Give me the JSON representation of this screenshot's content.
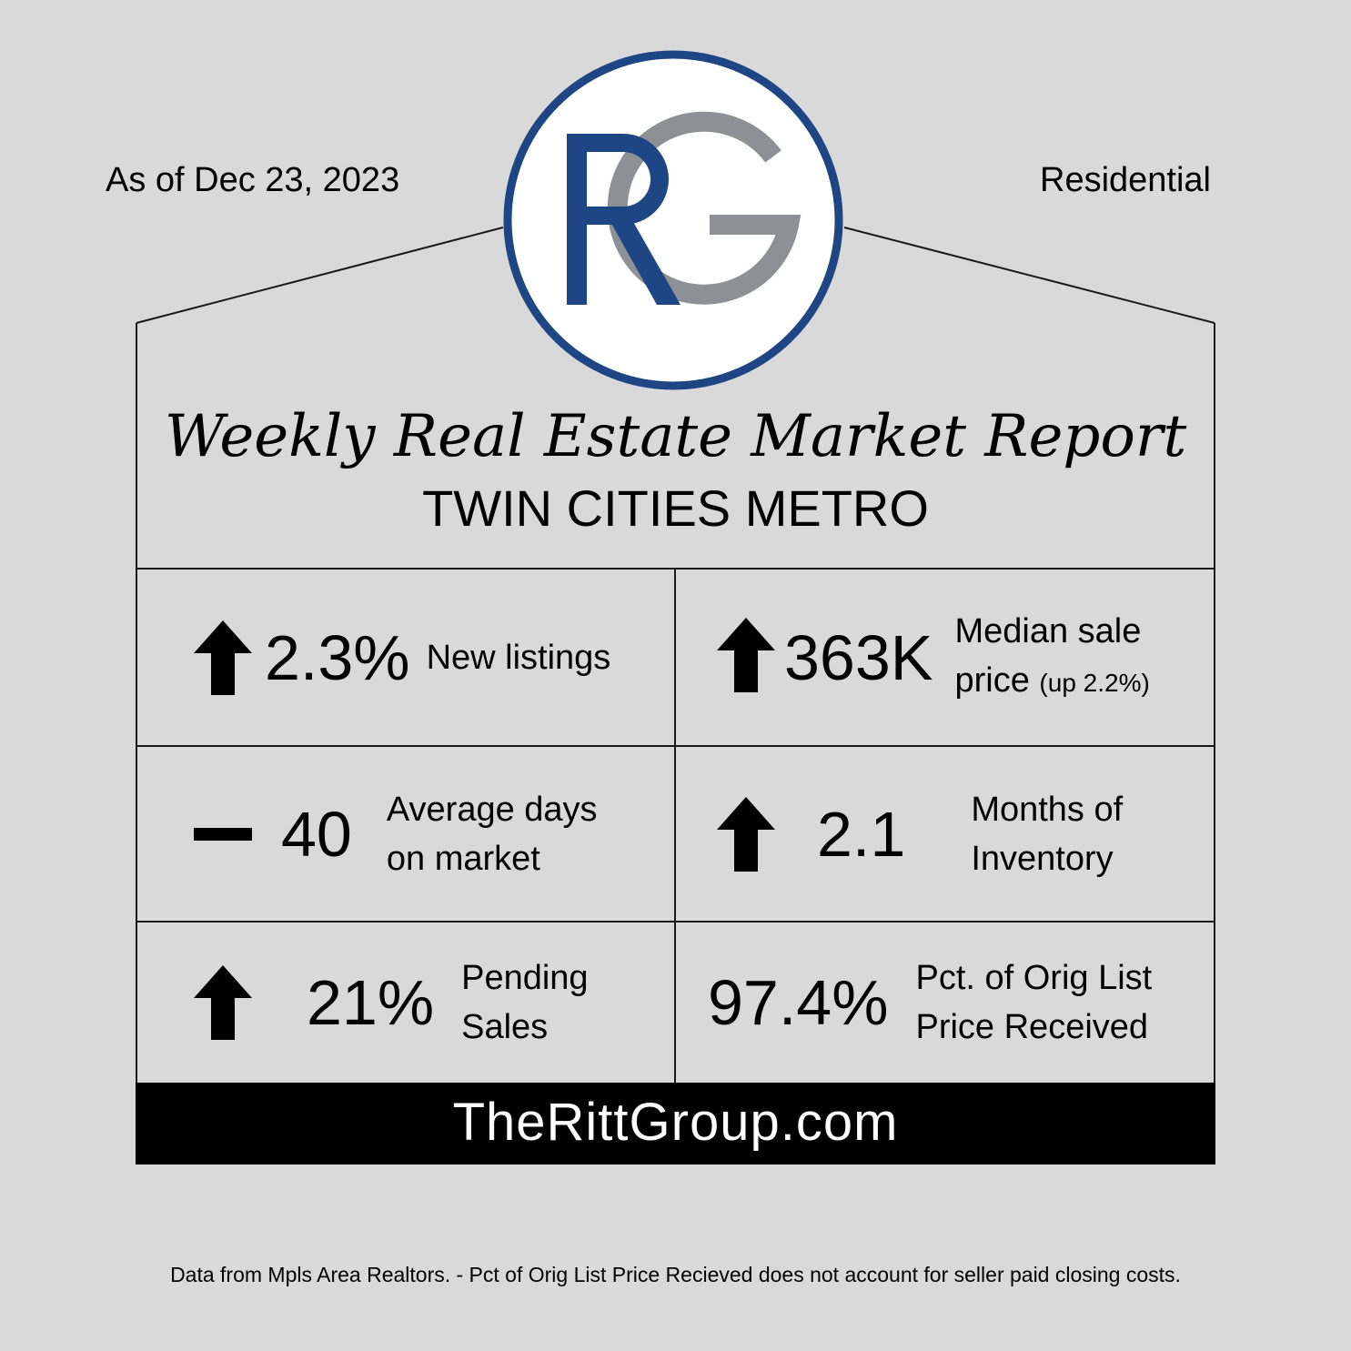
{
  "header": {
    "as_of": "As of Dec 23, 2023",
    "category": "Residential"
  },
  "logo": {
    "letters": [
      "R",
      "G"
    ],
    "colors": {
      "ring": "#1f4684",
      "letter_r": "#1f4684",
      "letter_g": "#8d9196",
      "fill": "#ffffff"
    }
  },
  "report": {
    "title": "Weekly Real Estate Market Report",
    "region": "TWIN CITIES METRO"
  },
  "metrics": [
    {
      "trend": "up",
      "value": "2.3%",
      "label_line1": "New listings",
      "label_line2": ""
    },
    {
      "trend": "up",
      "value": "363K",
      "label_line1": "Median sale",
      "label_line2": "price",
      "label_note": "(up 2.2%)"
    },
    {
      "trend": "flat",
      "value": "40",
      "label_line1": "Average days",
      "label_line2": "on market"
    },
    {
      "trend": "up",
      "value": "2.1",
      "label_line1": "Months of",
      "label_line2": "Inventory"
    },
    {
      "trend": "up",
      "value": "21%",
      "label_line1": "Pending",
      "label_line2": "Sales"
    },
    {
      "trend": "none",
      "value": "97.4%",
      "label_line1": "Pct. of Orig List",
      "label_line2": "Price Received"
    }
  ],
  "footer": {
    "website": "TheRittGroup.com",
    "disclaimer": "Data from Mpls Area Realtors. - Pct of Orig List Price Recieved does not account for seller paid closing costs."
  },
  "colors": {
    "background": "#d9d9d9",
    "footer_bar": "#000000",
    "footer_text": "#ffffff"
  }
}
